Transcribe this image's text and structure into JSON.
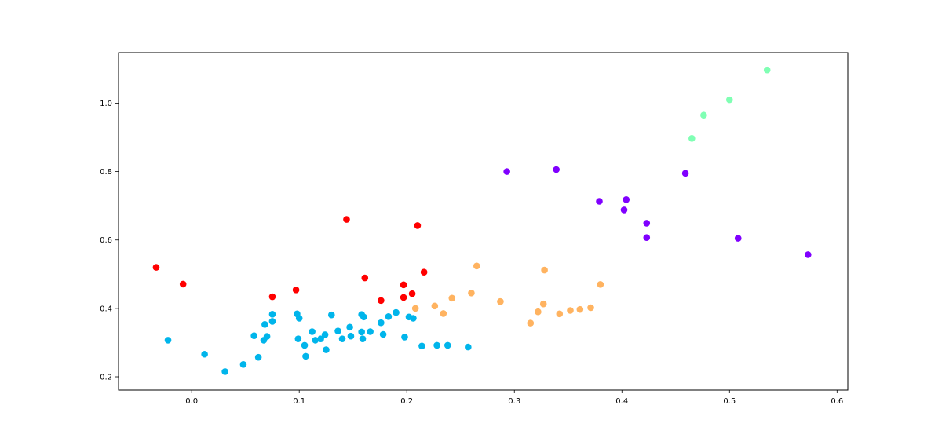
{
  "chart_data": {
    "type": "scatter",
    "title": "",
    "xlabel": "",
    "ylabel": "",
    "xlim": [
      -0.068,
      0.61
    ],
    "ylim": [
      0.161,
      1.148
    ],
    "xticks": [
      0.0,
      0.1,
      0.2,
      0.3,
      0.4,
      0.5,
      0.6
    ],
    "xtick_labels": [
      "0.0",
      "0.1",
      "0.2",
      "0.3",
      "0.4",
      "0.5",
      "0.6"
    ],
    "yticks": [
      0.2,
      0.4,
      0.6,
      0.8,
      1.0
    ],
    "ytick_labels": [
      "0.2",
      "0.4",
      "0.6",
      "0.8",
      "1.0"
    ],
    "grid": false,
    "legend": "none",
    "series": [
      {
        "color": "#ff0000",
        "points": [
          [
            -0.033,
            0.52
          ],
          [
            -0.008,
            0.471
          ],
          [
            0.075,
            0.434
          ],
          [
            0.097,
            0.454
          ],
          [
            0.144,
            0.66
          ],
          [
            0.161,
            0.489
          ],
          [
            0.176,
            0.423
          ],
          [
            0.197,
            0.469
          ],
          [
            0.197,
            0.432
          ],
          [
            0.205,
            0.443
          ],
          [
            0.21,
            0.642
          ],
          [
            0.216,
            0.506
          ]
        ]
      },
      {
        "color": "#00b5eb",
        "points": [
          [
            -0.022,
            0.307
          ],
          [
            0.012,
            0.266
          ],
          [
            0.031,
            0.215
          ],
          [
            0.048,
            0.236
          ],
          [
            0.058,
            0.32
          ],
          [
            0.062,
            0.257
          ],
          [
            0.067,
            0.307
          ],
          [
            0.068,
            0.353
          ],
          [
            0.07,
            0.318
          ],
          [
            0.075,
            0.383
          ],
          [
            0.075,
            0.362
          ],
          [
            0.098,
            0.384
          ],
          [
            0.099,
            0.311
          ],
          [
            0.1,
            0.371
          ],
          [
            0.105,
            0.292
          ],
          [
            0.106,
            0.26
          ],
          [
            0.112,
            0.332
          ],
          [
            0.115,
            0.307
          ],
          [
            0.12,
            0.311
          ],
          [
            0.124,
            0.323
          ],
          [
            0.125,
            0.279
          ],
          [
            0.13,
            0.381
          ],
          [
            0.136,
            0.334
          ],
          [
            0.14,
            0.311
          ],
          [
            0.147,
            0.345
          ],
          [
            0.148,
            0.319
          ],
          [
            0.158,
            0.382
          ],
          [
            0.158,
            0.331
          ],
          [
            0.159,
            0.311
          ],
          [
            0.16,
            0.375
          ],
          [
            0.166,
            0.332
          ],
          [
            0.176,
            0.358
          ],
          [
            0.178,
            0.324
          ],
          [
            0.183,
            0.376
          ],
          [
            0.19,
            0.388
          ],
          [
            0.198,
            0.316
          ],
          [
            0.202,
            0.375
          ],
          [
            0.206,
            0.371
          ],
          [
            0.214,
            0.29
          ],
          [
            0.228,
            0.292
          ],
          [
            0.238,
            0.292
          ],
          [
            0.257,
            0.287
          ]
        ]
      },
      {
        "color": "#ffb360",
        "points": [
          [
            0.208,
            0.4
          ],
          [
            0.226,
            0.407
          ],
          [
            0.234,
            0.385
          ],
          [
            0.242,
            0.43
          ],
          [
            0.26,
            0.445
          ],
          [
            0.265,
            0.524
          ],
          [
            0.287,
            0.42
          ],
          [
            0.315,
            0.357
          ],
          [
            0.322,
            0.39
          ],
          [
            0.327,
            0.413
          ],
          [
            0.328,
            0.512
          ],
          [
            0.342,
            0.384
          ],
          [
            0.352,
            0.394
          ],
          [
            0.361,
            0.397
          ],
          [
            0.371,
            0.402
          ],
          [
            0.38,
            0.47
          ]
        ]
      },
      {
        "color": "#80ffb4",
        "points": [
          [
            0.465,
            0.897
          ],
          [
            0.476,
            0.965
          ],
          [
            0.5,
            1.01
          ],
          [
            0.535,
            1.097
          ]
        ]
      },
      {
        "color": "#8000ff",
        "points": [
          [
            0.293,
            0.8
          ],
          [
            0.339,
            0.806
          ],
          [
            0.379,
            0.713
          ],
          [
            0.402,
            0.688
          ],
          [
            0.404,
            0.718
          ],
          [
            0.423,
            0.649
          ],
          [
            0.423,
            0.607
          ],
          [
            0.459,
            0.795
          ],
          [
            0.508,
            0.605
          ],
          [
            0.573,
            0.557
          ]
        ]
      }
    ]
  }
}
